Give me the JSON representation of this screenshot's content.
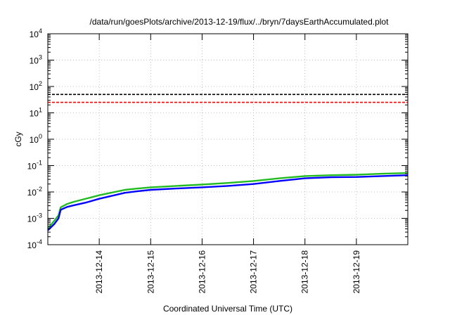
{
  "chart_data": {
    "type": "line",
    "title": "/data/run/goesPlots/archive/2013-12-19/flux/../bryn/7daysEarthAccumulated.plot",
    "xlabel": "Coordinated Universal Time (UTC)",
    "ylabel": "cGy",
    "yscale": "log",
    "ylim": [
      0.0001,
      10000
    ],
    "xlim": [
      "2013-12-13 00:00",
      "2013-12-20 00:00"
    ],
    "grid": true,
    "x_tick_labels": [
      "2013-12-14",
      "2013-12-15",
      "2013-12-16",
      "2013-12-17",
      "2013-12-18",
      "2013-12-19"
    ],
    "y_ticks": [
      {
        "value": 0.0001,
        "base": "10",
        "exp": "-4"
      },
      {
        "value": 0.001,
        "base": "10",
        "exp": "-3"
      },
      {
        "value": 0.01,
        "base": "10",
        "exp": "-2"
      },
      {
        "value": 0.1,
        "base": "10",
        "exp": "-1"
      },
      {
        "value": 1,
        "base": "10",
        "exp": "0"
      },
      {
        "value": 10,
        "base": "10",
        "exp": "1"
      },
      {
        "value": 100,
        "base": "10",
        "exp": "2"
      },
      {
        "value": 1000,
        "base": "10",
        "exp": "3"
      },
      {
        "value": 10000,
        "base": "10",
        "exp": "4"
      }
    ],
    "reference_lines": [
      {
        "value": 50,
        "color": "#000000",
        "style": "dashed"
      },
      {
        "value": 25,
        "color": "#ff0000",
        "style": "dashed"
      }
    ],
    "series": [
      {
        "color": "#22bb22",
        "x": [
          "2013-12-13 00:00",
          "2013-12-13 03:00",
          "2013-12-13 05:00",
          "2013-12-13 06:00",
          "2013-12-13 09:00",
          "2013-12-13 12:00",
          "2013-12-13 18:00",
          "2013-12-14 00:00",
          "2013-12-14 06:00",
          "2013-12-14 12:00",
          "2013-12-14 18:00",
          "2013-12-15 00:00",
          "2013-12-15 12:00",
          "2013-12-16 00:00",
          "2013-12-16 12:00",
          "2013-12-17 00:00",
          "2013-12-17 12:00",
          "2013-12-18 00:00",
          "2013-12-18 12:00",
          "2013-12-19 00:00",
          "2013-12-19 12:00",
          "2013-12-19 23:59"
        ],
        "y": [
          0.0004,
          0.0008,
          0.0013,
          0.0026,
          0.0035,
          0.0042,
          0.0056,
          0.0075,
          0.0095,
          0.012,
          0.0135,
          0.015,
          0.017,
          0.019,
          0.022,
          0.026,
          0.033,
          0.04,
          0.043,
          0.045,
          0.049,
          0.052
        ]
      },
      {
        "color": "#0000ff",
        "x": [
          "2013-12-13 00:00",
          "2013-12-13 03:00",
          "2013-12-13 05:00",
          "2013-12-13 06:00",
          "2013-12-13 09:00",
          "2013-12-13 12:00",
          "2013-12-13 18:00",
          "2013-12-14 00:00",
          "2013-12-14 06:00",
          "2013-12-14 12:00",
          "2013-12-14 18:00",
          "2013-12-15 00:00",
          "2013-12-15 12:00",
          "2013-12-16 00:00",
          "2013-12-16 12:00",
          "2013-12-17 00:00",
          "2013-12-17 12:00",
          "2013-12-18 00:00",
          "2013-12-18 12:00",
          "2013-12-19 00:00",
          "2013-12-19 12:00",
          "2013-12-19 23:59"
        ],
        "y": [
          0.00035,
          0.0006,
          0.001,
          0.0021,
          0.0027,
          0.0031,
          0.004,
          0.0055,
          0.0072,
          0.0093,
          0.0107,
          0.012,
          0.0135,
          0.015,
          0.017,
          0.02,
          0.026,
          0.033,
          0.036,
          0.037,
          0.04,
          0.043
        ]
      }
    ]
  }
}
